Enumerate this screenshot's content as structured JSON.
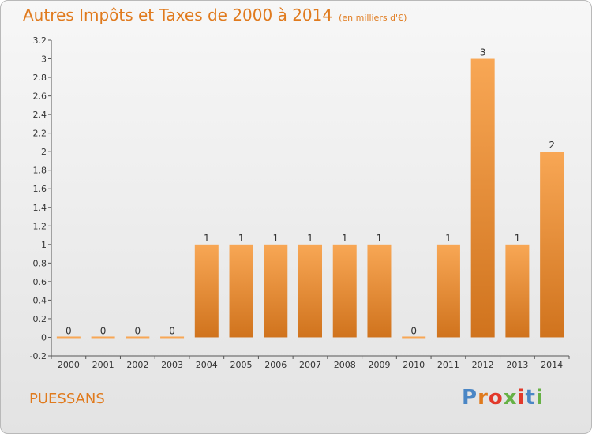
{
  "title": {
    "main": "Autres Impôts et Taxes de 2000 à 2014",
    "unit": "(en milliers d'€)"
  },
  "commune": "PUESSANS",
  "logo": {
    "text": "Proxiti",
    "letter_colors": [
      "#4a86c5",
      "#e07a1d",
      "#e2392b",
      "#66b145",
      "#e2392b",
      "#4a86c5",
      "#66b145"
    ]
  },
  "colors": {
    "bar_light": "#f8a755",
    "bar_dark": "#d0731d",
    "text_orange": "#e07a1d"
  },
  "chart_data": {
    "type": "bar",
    "title": "Autres Impôts et Taxes de 2000 à 2014",
    "subtitle": "(en milliers d'€)",
    "categories": [
      "2000",
      "2001",
      "2002",
      "2003",
      "2004",
      "2005",
      "2006",
      "2007",
      "2008",
      "2009",
      "2010",
      "2011",
      "2012",
      "2013",
      "2014"
    ],
    "values": [
      0,
      0,
      0,
      0,
      1,
      1,
      1,
      1,
      1,
      1,
      0,
      1,
      3,
      1,
      2
    ],
    "data_labels": [
      "0",
      "0",
      "0",
      "0",
      "1",
      "1",
      "1",
      "1",
      "1",
      "1",
      "0",
      "1",
      "3",
      "1",
      "2"
    ],
    "ylim": [
      -0.2,
      3.2
    ],
    "yticks": [
      -0.2,
      0,
      0.2,
      0.4,
      0.6,
      0.8,
      1,
      1.2,
      1.4,
      1.6,
      1.8,
      2,
      2.2,
      2.4,
      2.6,
      2.8,
      3,
      3.2
    ],
    "ytick_labels": [
      "-0.2",
      "0",
      "0.2",
      "0.4",
      "0.6",
      "0.8",
      "1",
      "1.2",
      "1.4",
      "1.6",
      "1.8",
      "2",
      "2.2",
      "2.4",
      "2.6",
      "2.8",
      "3",
      "3.2"
    ],
    "grid": false,
    "legend": "none"
  }
}
